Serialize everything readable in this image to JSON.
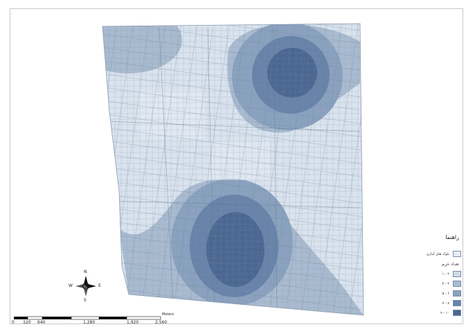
{
  "compass": {
    "n": "N",
    "s": "S",
    "e": "E",
    "w": "W"
  },
  "scale_bar": {
    "ticks": [
      "0",
      "320",
      "640",
      "1,280",
      "1,920",
      "2,560"
    ],
    "unit": "Meters"
  },
  "legend": {
    "title": "راهنما",
    "boundary_label": "بلوک های آماری",
    "boundary_color": "#e6ecf4",
    "class_title": "تعداد جرم",
    "classes": [
      {
        "label": "۱ - ۲",
        "color": "#cfdae6"
      },
      {
        "label": "۳ - ۴",
        "color": "#a9bbd0"
      },
      {
        "label": "۵ - ۶",
        "color": "#8aa2bf"
      },
      {
        "label": "۷ - ۸",
        "color": "#6883aa"
      },
      {
        "label": "۹ - ۱۰",
        "color": "#4a6792"
      }
    ]
  }
}
